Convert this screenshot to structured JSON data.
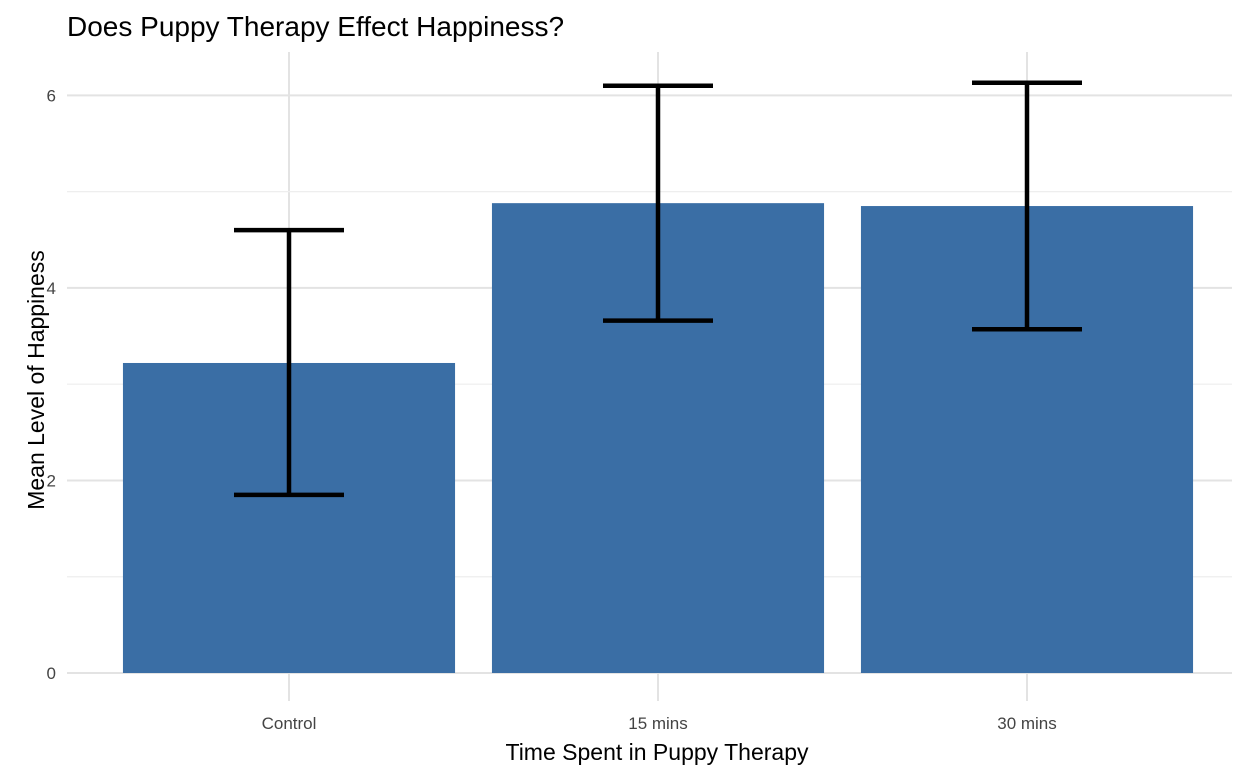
{
  "chart_data": {
    "type": "bar",
    "title": "Does Puppy Therapy Effect Happiness?",
    "xlabel": "Time Spent in Puppy Therapy",
    "ylabel": "Mean Level of Happiness",
    "categories": [
      "Control",
      "15 mins",
      "30 mins"
    ],
    "values": [
      3.22,
      4.88,
      4.85
    ],
    "error_bars": [
      {
        "low": 1.85,
        "high": 4.6
      },
      {
        "low": 3.66,
        "high": 6.1
      },
      {
        "low": 3.57,
        "high": 6.13
      }
    ],
    "ylim": [
      0,
      6.45
    ],
    "yticks": [
      0,
      2,
      4,
      6
    ],
    "grid": true,
    "bar_color": "#3a6ea5",
    "errorbar_color": "#000000"
  }
}
